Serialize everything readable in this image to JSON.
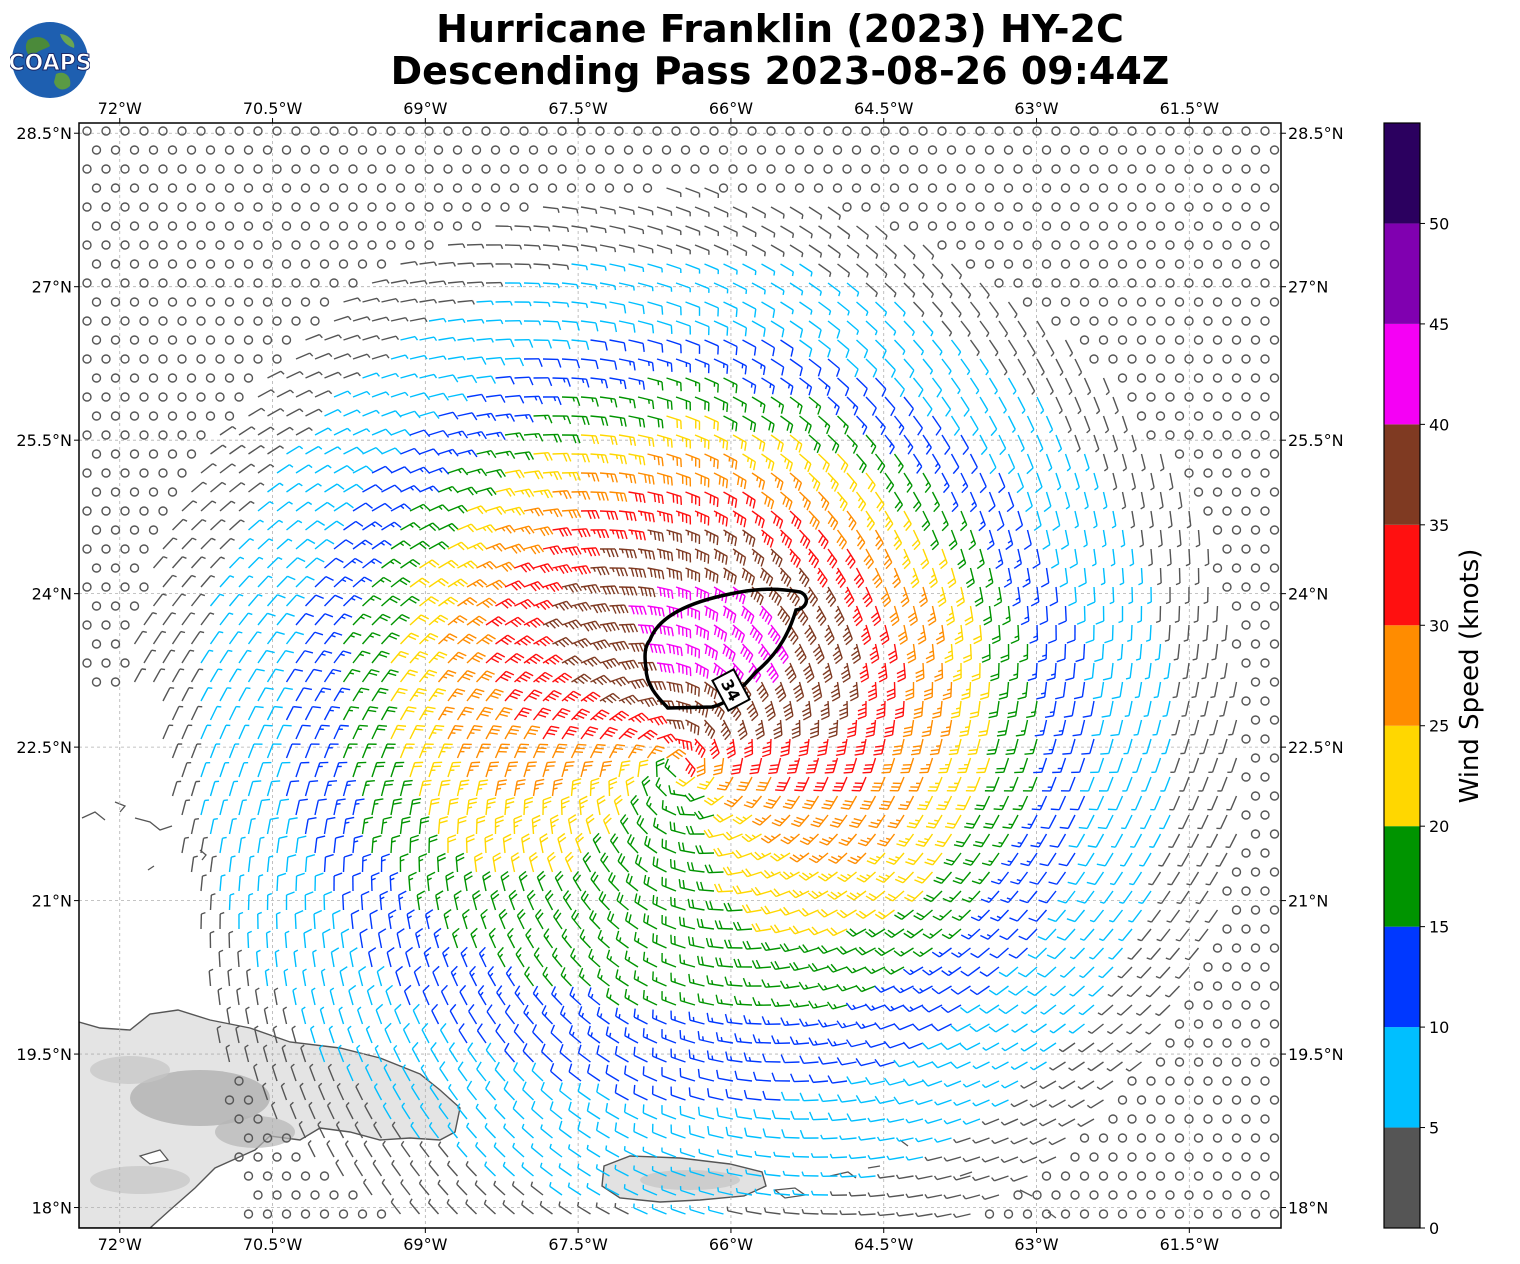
{
  "title": {
    "line1": "Hurricane Franklin (2023) HY-2C",
    "line2": "Descending Pass 2023-08-26 09:44Z"
  },
  "logo": {
    "text": "COAPS",
    "icon": "globe-logo-icon"
  },
  "axes": {
    "lon_labels": [
      "72°W",
      "70.5°W",
      "69°W",
      "67.5°W",
      "66°W",
      "64.5°W",
      "63°W",
      "61.5°W"
    ],
    "lat_labels": [
      "28.5°N",
      "27°N",
      "25.5°N",
      "24°N",
      "22.5°N",
      "21°N",
      "19.5°N",
      "18°N"
    ],
    "lon_range": [
      -72.4,
      -60.6
    ],
    "lat_range": [
      17.8,
      28.6
    ],
    "gridlines": true
  },
  "contour": {
    "label": "34",
    "units": "knots"
  },
  "colorbar": {
    "label": "Wind Speed (knots)",
    "ticks": [
      "0",
      "5",
      "10",
      "15",
      "20",
      "25",
      "30",
      "35",
      "40",
      "45",
      "50"
    ],
    "colors": [
      "#555555",
      "#00bfff",
      "#0038ff",
      "#009400",
      "#ffd700",
      "#ff8c00",
      "#ff1010",
      "#7f3a22",
      "#f500f5",
      "#8000b0",
      "#2b005f"
    ],
    "max": 55
  },
  "storm_center": {
    "lon": -66.5,
    "lat": 22.3
  }
}
